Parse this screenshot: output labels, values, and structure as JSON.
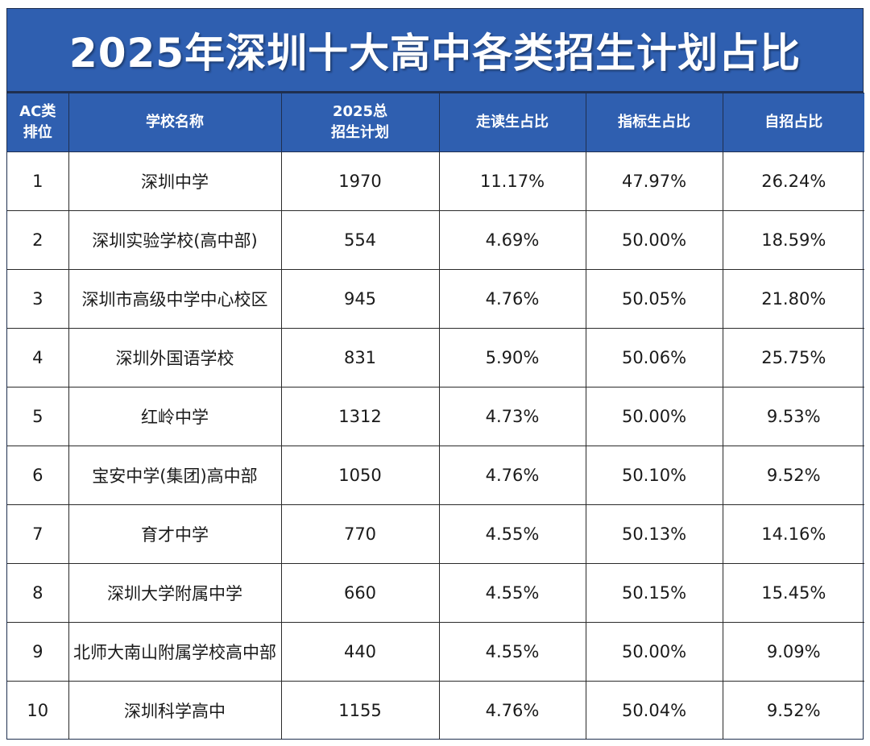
{
  "title": "2025年深圳十大高中各类招生计划占比",
  "headers": {
    "rank_line1": "AC类",
    "rank_line2": "排位",
    "name": "学校名称",
    "plan_line1": "2025总",
    "plan_line2": "招生计划",
    "walk": "走读生占比",
    "quota": "指标生占比",
    "self": "自招占比"
  },
  "rows": [
    {
      "rank": "1",
      "name": "深圳中学",
      "plan": "1970",
      "walk": "11.17%",
      "quota": "47.97%",
      "self": "26.24%"
    },
    {
      "rank": "2",
      "name": "深圳实验学校(高中部)",
      "plan": "554",
      "walk": "4.69%",
      "quota": "50.00%",
      "self": "18.59%"
    },
    {
      "rank": "3",
      "name": "深圳市高级中学中心校区",
      "plan": "945",
      "walk": "4.76%",
      "quota": "50.05%",
      "self": "21.80%"
    },
    {
      "rank": "4",
      "name": "深圳外国语学校",
      "plan": "831",
      "walk": "5.90%",
      "quota": "50.06%",
      "self": "25.75%"
    },
    {
      "rank": "5",
      "name": "红岭中学",
      "plan": "1312",
      "walk": "4.73%",
      "quota": "50.00%",
      "self": "9.53%"
    },
    {
      "rank": "6",
      "name": "宝安中学(集团)高中部",
      "plan": "1050",
      "walk": "4.76%",
      "quota": "50.10%",
      "self": "9.52%"
    },
    {
      "rank": "7",
      "name": "育才中学",
      "plan": "770",
      "walk": "4.55%",
      "quota": "50.13%",
      "self": "14.16%"
    },
    {
      "rank": "8",
      "name": "深圳大学附属中学",
      "plan": "660",
      "walk": "4.55%",
      "quota": "50.15%",
      "self": "15.45%"
    },
    {
      "rank": "9",
      "name": "北师大南山附属学校高中部",
      "plan": "440",
      "walk": "4.55%",
      "quota": "50.00%",
      "self": "9.09%"
    },
    {
      "rank": "10",
      "name": "深圳科学高中",
      "plan": "1155",
      "walk": "4.76%",
      "quota": "50.04%",
      "self": "9.52%"
    }
  ],
  "colors": {
    "header_blue": "#2f5fb0",
    "header_text": "#ffffff",
    "grid_line": "#2a2a2a"
  }
}
